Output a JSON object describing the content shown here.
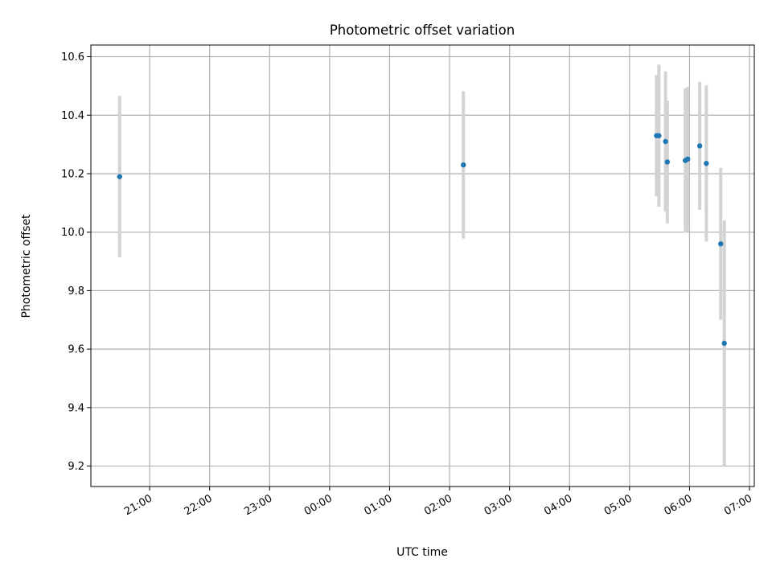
{
  "chart_data": {
    "type": "scatter",
    "title": "Photometric offset variation",
    "xlabel": "UTC time",
    "ylabel": "Photometric offset",
    "x_unit": "hours",
    "xlim": [
      -3.98,
      7.08
    ],
    "ylim": [
      9.13,
      10.64
    ],
    "grid": true,
    "x_ticks": [
      {
        "label": "21:00",
        "value": -3
      },
      {
        "label": "22:00",
        "value": -2
      },
      {
        "label": "23:00",
        "value": -1
      },
      {
        "label": "00:00",
        "value": 0
      },
      {
        "label": "01:00",
        "value": 1
      },
      {
        "label": "02:00",
        "value": 2
      },
      {
        "label": "03:00",
        "value": 3
      },
      {
        "label": "04:00",
        "value": 4
      },
      {
        "label": "05:00",
        "value": 5
      },
      {
        "label": "06:00",
        "value": 6
      },
      {
        "label": "07:00",
        "value": 7
      }
    ],
    "y_ticks": [
      {
        "label": "9.2",
        "value": 9.2
      },
      {
        "label": "9.4",
        "value": 9.4
      },
      {
        "label": "9.6",
        "value": 9.6
      },
      {
        "label": "9.8",
        "value": 9.8
      },
      {
        "label": "10.0",
        "value": 10.0
      },
      {
        "label": "10.2",
        "value": 10.2
      },
      {
        "label": "10.4",
        "value": 10.4
      },
      {
        "label": "10.6",
        "value": 10.6
      }
    ],
    "points": [
      {
        "time": "20:30",
        "x": -3.5,
        "y": 10.19,
        "err": 0.276
      },
      {
        "time": "02:14",
        "x": 2.23,
        "y": 10.23,
        "err": 0.252
      },
      {
        "time": "05:27",
        "x": 5.45,
        "y": 10.33,
        "err": 0.208
      },
      {
        "time": "05:29",
        "x": 5.49,
        "y": 10.33,
        "err": 0.243
      },
      {
        "time": "05:36",
        "x": 5.6,
        "y": 10.31,
        "err": 0.24
      },
      {
        "time": "05:38",
        "x": 5.63,
        "y": 10.24,
        "err": 0.21
      },
      {
        "time": "05:56",
        "x": 5.93,
        "y": 10.245,
        "err": 0.247
      },
      {
        "time": "05:58",
        "x": 5.97,
        "y": 10.25,
        "err": 0.247
      },
      {
        "time": "06:10",
        "x": 6.17,
        "y": 10.295,
        "err": 0.219
      },
      {
        "time": "06:17",
        "x": 6.28,
        "y": 10.235,
        "err": 0.267
      },
      {
        "time": "06:31",
        "x": 6.52,
        "y": 9.96,
        "err": 0.26
      },
      {
        "time": "06:35",
        "x": 6.58,
        "y": 9.62,
        "err": 0.42
      }
    ],
    "marker_color": "#1f77b4",
    "errorbar_color": "#d3d3d3",
    "grid_color": "#b0b0b0"
  }
}
